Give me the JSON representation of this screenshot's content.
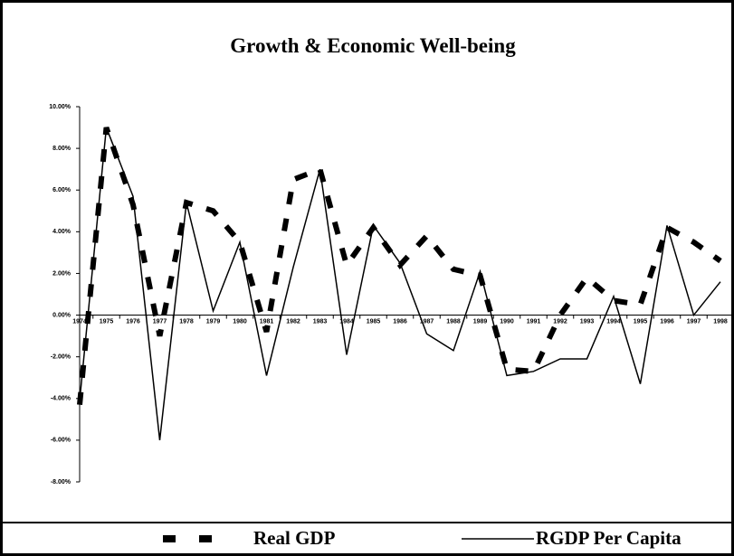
{
  "chart_data": {
    "type": "line",
    "title": "Growth & Economic Well-being",
    "categories": [
      "1974",
      "1975",
      "1976",
      "1977",
      "1978",
      "1979",
      "1980",
      "1981",
      "1982",
      "1983",
      "1984",
      "1985",
      "1986",
      "1987",
      "1988",
      "1989",
      "1990",
      "1991",
      "1992",
      "1993",
      "1994",
      "1995",
      "1996",
      "1997",
      "1998"
    ],
    "series": [
      {
        "name": "Real GDP",
        "color": "#000000",
        "style": "dashed",
        "values": [
          -4.3,
          9.0,
          5.3,
          -1.0,
          5.4,
          5.0,
          3.5,
          -0.8,
          6.5,
          7.0,
          2.4,
          4.2,
          2.4,
          3.8,
          2.2,
          1.9,
          -2.6,
          -2.7,
          0.0,
          1.8,
          0.7,
          0.5,
          4.2,
          3.5,
          2.6
        ]
      },
      {
        "name": "RGDP Per Capita",
        "color": "#000000",
        "style": "solid",
        "values": [
          -4.1,
          9.0,
          5.7,
          -6.0,
          5.4,
          0.2,
          3.5,
          -2.9,
          2.3,
          7.0,
          -1.9,
          4.3,
          2.5,
          -0.9,
          -1.7,
          2.1,
          -2.9,
          -2.7,
          -2.1,
          -2.1,
          0.9,
          -3.3,
          4.3,
          0.0,
          1.6
        ]
      }
    ],
    "ylim": [
      -8,
      10
    ],
    "yticks": [
      {
        "value": 10,
        "label": "10.00%"
      },
      {
        "value": 8,
        "label": "8.00%"
      },
      {
        "value": 6,
        "label": "6.00%"
      },
      {
        "value": 4,
        "label": "4.00%"
      },
      {
        "value": 2,
        "label": "2.00%"
      },
      {
        "value": 0,
        "label": "0.00%"
      },
      {
        "value": -2,
        "label": "-2.00%"
      },
      {
        "value": -4,
        "label": "-4.00%"
      },
      {
        "value": -6,
        "label": "-6.00%"
      },
      {
        "value": -8,
        "label": "-8.00%"
      }
    ],
    "legend": "bottom"
  }
}
